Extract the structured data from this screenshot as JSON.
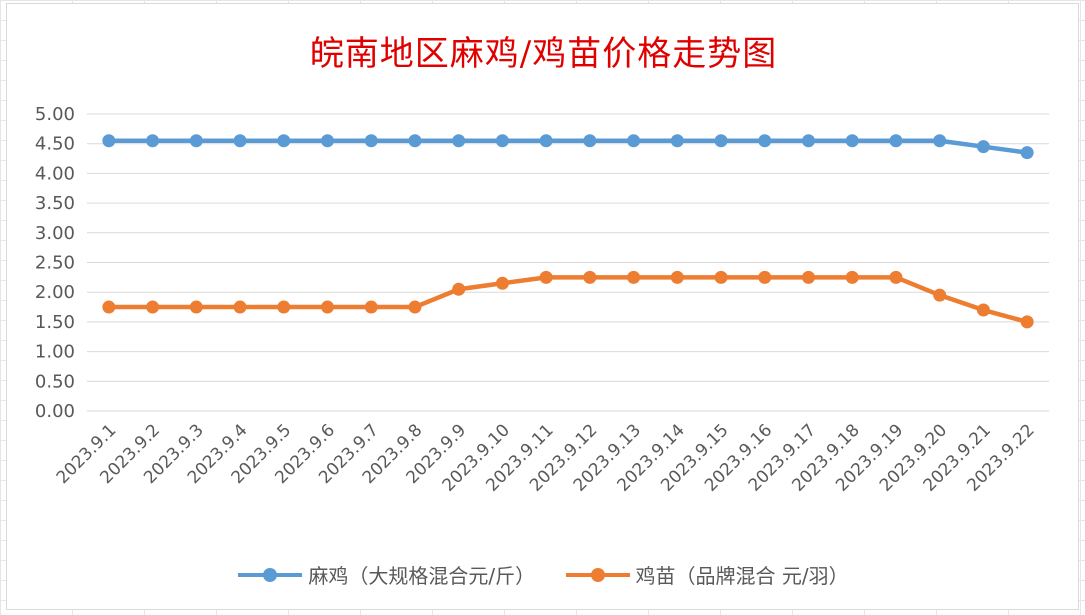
{
  "chart_data": {
    "type": "line",
    "title": "皖南地区麻鸡/鸡苗价格走势图",
    "categories": [
      "2023.9.1",
      "2023.9.2",
      "2023.9.3",
      "2023.9.4",
      "2023.9.5",
      "2023.9.6",
      "2023.9.7",
      "2023.9.8",
      "2023.9.9",
      "2023.9.10",
      "2023.9.11",
      "2023.9.12",
      "2023.9.13",
      "2023.9.14",
      "2023.9.15",
      "2023.9.16",
      "2023.9.17",
      "2023.9.18",
      "2023.9.19",
      "2023.9.20",
      "2023.9.21",
      "2023.9.22"
    ],
    "series": [
      {
        "name": "麻鸡（大规格混合元/斤）",
        "color": "#5b9bd5",
        "values": [
          4.55,
          4.55,
          4.55,
          4.55,
          4.55,
          4.55,
          4.55,
          4.55,
          4.55,
          4.55,
          4.55,
          4.55,
          4.55,
          4.55,
          4.55,
          4.55,
          4.55,
          4.55,
          4.55,
          4.55,
          4.45,
          4.35
        ]
      },
      {
        "name": "鸡苗（品牌混合 元/羽）",
        "color": "#ed7d31",
        "values": [
          1.75,
          1.75,
          1.75,
          1.75,
          1.75,
          1.75,
          1.75,
          1.75,
          2.05,
          2.15,
          2.25,
          2.25,
          2.25,
          2.25,
          2.25,
          2.25,
          2.25,
          2.25,
          2.25,
          1.95,
          1.7,
          1.5
        ]
      }
    ],
    "ylim": [
      0,
      5
    ],
    "yticks": [
      "0.00",
      "0.50",
      "1.00",
      "1.50",
      "2.00",
      "2.50",
      "3.00",
      "3.50",
      "4.00",
      "4.50",
      "5.00"
    ],
    "grid": true,
    "legend_position": "bottom"
  }
}
